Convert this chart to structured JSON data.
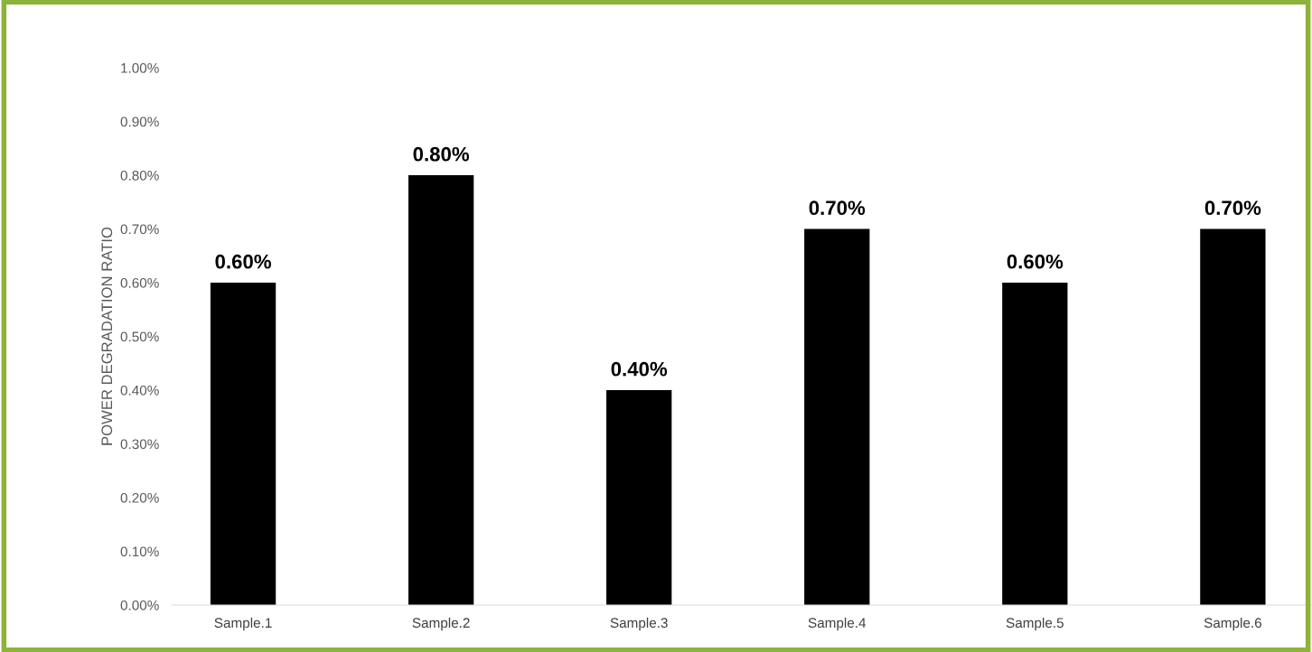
{
  "chart_data": {
    "type": "bar",
    "ylabel": "POWER DEGRADATION RATIO",
    "categories": [
      "Sample.1",
      "Sample.2",
      "Sample.3",
      "Sample.4",
      "Sample.5",
      "Sample.6"
    ],
    "values": [
      0.6,
      0.8,
      0.4,
      0.7,
      0.6,
      0.7
    ],
    "value_labels": [
      "0.60%",
      "0.80%",
      "0.40%",
      "0.70%",
      "0.60%",
      "0.70%"
    ],
    "color": "#000000",
    "ylim": [
      0,
      1.0
    ],
    "yticks": [
      {
        "value": 0,
        "label": "0.00%"
      },
      {
        "value": 0.1,
        "label": "0.10%"
      },
      {
        "value": 0.2,
        "label": "0.20%"
      },
      {
        "value": 0.3,
        "label": "0.30%"
      },
      {
        "value": 0.4,
        "label": "0.40%"
      },
      {
        "value": 0.5,
        "label": "0.50%"
      },
      {
        "value": 0.6,
        "label": "0.60%"
      },
      {
        "value": 0.7,
        "label": "0.70%"
      },
      {
        "value": 0.8,
        "label": "0.80%"
      },
      {
        "value": 0.9,
        "label": "0.90%"
      },
      {
        "value": 1.0,
        "label": "1.00%"
      }
    ],
    "grid": false,
    "legend": false
  }
}
